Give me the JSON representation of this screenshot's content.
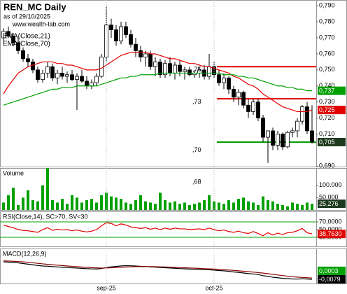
{
  "chart_data": [
    {
      "type": "candlestick",
      "title": "REN_MC Daily",
      "subtitle": "as of 29/10/2025",
      "source": "www.wealth-lab.com",
      "open": [
        0.77,
        0.774,
        0.771,
        0.767,
        0.762,
        0.757,
        0.755,
        0.75,
        0.744,
        0.748,
        0.752,
        0.745,
        0.748,
        0.746,
        0.747,
        0.744,
        0.746,
        0.743,
        0.74,
        0.742,
        0.746,
        0.758,
        0.778,
        0.775,
        0.768,
        0.777,
        0.772,
        0.766,
        0.762,
        0.758,
        0.76,
        0.752,
        0.755,
        0.747,
        0.754,
        0.748,
        0.753,
        0.749,
        0.75,
        0.747,
        0.748,
        0.75,
        0.746,
        0.752,
        0.747,
        0.742,
        0.745,
        0.738,
        0.733,
        0.736,
        0.728,
        0.724,
        0.73,
        0.72,
        0.708,
        0.712,
        0.703,
        0.71,
        0.702,
        0.711,
        0.712,
        0.718,
        0.727,
        0.712
      ],
      "high": [
        0.776,
        0.777,
        0.773,
        0.77,
        0.764,
        0.76,
        0.757,
        0.752,
        0.75,
        0.755,
        0.754,
        0.75,
        0.752,
        0.749,
        0.75,
        0.748,
        0.75,
        0.746,
        0.744,
        0.748,
        0.76,
        0.79,
        0.782,
        0.778,
        0.78,
        0.78,
        0.775,
        0.77,
        0.765,
        0.762,
        0.762,
        0.758,
        0.757,
        0.756,
        0.758,
        0.755,
        0.756,
        0.752,
        0.752,
        0.75,
        0.752,
        0.753,
        0.76,
        0.755,
        0.75,
        0.748,
        0.746,
        0.74,
        0.738,
        0.737,
        0.732,
        0.732,
        0.732,
        0.722,
        0.712,
        0.714,
        0.712,
        0.711,
        0.712,
        0.714,
        0.72,
        0.728,
        0.73,
        0.728
      ],
      "low": [
        0.768,
        0.77,
        0.765,
        0.76,
        0.755,
        0.752,
        0.748,
        0.742,
        0.742,
        0.745,
        0.743,
        0.741,
        0.744,
        0.742,
        0.743,
        0.725,
        0.742,
        0.738,
        0.738,
        0.74,
        0.745,
        0.755,
        0.77,
        0.765,
        0.766,
        0.77,
        0.764,
        0.758,
        0.755,
        0.752,
        0.75,
        0.746,
        0.745,
        0.745,
        0.746,
        0.744,
        0.746,
        0.744,
        0.746,
        0.745,
        0.745,
        0.744,
        0.744,
        0.745,
        0.74,
        0.738,
        0.735,
        0.73,
        0.728,
        0.726,
        0.72,
        0.722,
        0.718,
        0.705,
        0.692,
        0.7,
        0.7,
        0.7,
        0.701,
        0.708,
        0.708,
        0.716,
        0.71,
        0.704
      ],
      "close": [
        0.774,
        0.771,
        0.767,
        0.762,
        0.757,
        0.755,
        0.75,
        0.744,
        0.748,
        0.752,
        0.745,
        0.748,
        0.746,
        0.747,
        0.744,
        0.746,
        0.743,
        0.74,
        0.742,
        0.746,
        0.758,
        0.778,
        0.775,
        0.768,
        0.777,
        0.772,
        0.766,
        0.762,
        0.758,
        0.76,
        0.752,
        0.755,
        0.747,
        0.754,
        0.748,
        0.753,
        0.749,
        0.75,
        0.747,
        0.748,
        0.75,
        0.746,
        0.752,
        0.747,
        0.742,
        0.745,
        0.738,
        0.733,
        0.736,
        0.728,
        0.724,
        0.73,
        0.72,
        0.708,
        0.712,
        0.703,
        0.71,
        0.702,
        0.711,
        0.712,
        0.718,
        0.727,
        0.712,
        0.705
      ],
      "series": [
        {
          "name": "EMA(Close,21)",
          "color": "#e00000",
          "values": [
            0.735,
            0.74,
            0.744,
            0.748,
            0.75,
            0.752,
            0.753,
            0.754,
            0.755,
            0.755,
            0.755,
            0.754,
            0.754,
            0.753,
            0.753,
            0.752,
            0.751,
            0.75,
            0.75,
            0.75,
            0.751,
            0.753,
            0.755,
            0.757,
            0.759,
            0.76,
            0.761,
            0.761,
            0.761,
            0.761,
            0.76,
            0.76,
            0.759,
            0.758,
            0.757,
            0.757,
            0.756,
            0.755,
            0.754,
            0.754,
            0.753,
            0.752,
            0.752,
            0.751,
            0.75,
            0.749,
            0.748,
            0.746,
            0.745,
            0.743,
            0.741,
            0.74,
            0.738,
            0.735,
            0.733,
            0.731,
            0.729,
            0.727,
            0.726,
            0.725,
            0.724,
            0.724,
            0.724,
            0.725
          ]
        },
        {
          "name": "EMA(Close,70)",
          "color": "#00a000",
          "values": [
            0.728,
            0.729,
            0.73,
            0.731,
            0.732,
            0.733,
            0.734,
            0.735,
            0.736,
            0.737,
            0.738,
            0.738,
            0.739,
            0.739,
            0.739,
            0.74,
            0.74,
            0.74,
            0.74,
            0.74,
            0.741,
            0.742,
            0.743,
            0.744,
            0.745,
            0.745,
            0.746,
            0.746,
            0.747,
            0.747,
            0.747,
            0.747,
            0.748,
            0.748,
            0.748,
            0.748,
            0.748,
            0.748,
            0.748,
            0.748,
            0.748,
            0.748,
            0.748,
            0.748,
            0.748,
            0.747,
            0.747,
            0.747,
            0.746,
            0.746,
            0.745,
            0.745,
            0.744,
            0.743,
            0.742,
            0.741,
            0.74,
            0.74,
            0.739,
            0.739,
            0.738,
            0.738,
            0.737,
            0.737
          ]
        }
      ],
      "levels": [
        {
          "value": 0.752,
          "color": "#e00000"
        },
        {
          "value": 0.732,
          "color": "#e00000"
        },
        {
          "value": 0.705,
          "color": "#00a000"
        }
      ],
      "annotations": [
        {
          "value": 0.75,
          "label": ",75"
        },
        {
          "value": 0.73,
          "label": ",73"
        },
        {
          "value": 0.7,
          "label": ",70"
        },
        {
          "value": 0.68,
          "label": ",68"
        }
      ],
      "ylim": [
        0.6897,
        0.7936
      ],
      "yticks": [
        {
          "value": 0.79,
          "label": "0,790"
        },
        {
          "value": 0.78,
          "label": "0,780"
        },
        {
          "value": 0.77,
          "label": "0,770"
        },
        {
          "value": 0.76,
          "label": "0,760"
        },
        {
          "value": 0.75,
          "label": "0,750"
        },
        {
          "value": 0.74,
          "label": "0,740"
        },
        {
          "value": 0.73,
          "label": "0,730"
        },
        {
          "value": 0.72,
          "label": "0,720"
        },
        {
          "value": 0.71,
          "label": "0,710"
        },
        {
          "value": 0.69,
          "label": "0,690"
        }
      ],
      "last_labels": [
        {
          "value": 0.737,
          "label": "0,737",
          "color": "#00a000"
        },
        {
          "value": 0.725,
          "label": "0,725",
          "color": "#e00000"
        },
        {
          "value": 0.705,
          "label": "0,705",
          "color": "#1e3a1e"
        }
      ]
    },
    {
      "type": "bar",
      "title": "Volume",
      "color": "#00a000",
      "values": [
        30000,
        60000,
        90000,
        20000,
        50000,
        80000,
        40000,
        35000,
        100000,
        170000,
        40000,
        30000,
        45000,
        25000,
        60000,
        50000,
        30000,
        40000,
        45000,
        30000,
        60000,
        70000,
        55000,
        50000,
        45000,
        30000,
        25000,
        40000,
        60000,
        35000,
        30000,
        25000,
        70000,
        40000,
        30000,
        35000,
        25000,
        30000,
        20000,
        25000,
        30000,
        40000,
        60000,
        35000,
        30000,
        25000,
        40000,
        30000,
        45000,
        50000,
        35000,
        30000,
        20000,
        55000,
        40000,
        35000,
        25000,
        20000,
        15000,
        30000,
        25000,
        20000,
        30000,
        25276
      ],
      "ylim": [
        0,
        170000
      ],
      "yticks": [
        {
          "value": 100000,
          "label": "100.000"
        },
        {
          "value": 50000,
          "label": "50.000"
        }
      ],
      "last_labels": [
        {
          "value": 25276,
          "label": "25.276",
          "color": "#1e3a1e"
        }
      ]
    },
    {
      "type": "line",
      "title": "RSI(Close,14), SC>70, SV<30",
      "color": "#e00000",
      "values": [
        62,
        58,
        55,
        50,
        48,
        47,
        45,
        43,
        50,
        55,
        48,
        51,
        49,
        50,
        47,
        49,
        46,
        44,
        46,
        50,
        60,
        68,
        66,
        60,
        65,
        62,
        57,
        55,
        53,
        55,
        51,
        54,
        50,
        54,
        51,
        54,
        52,
        52,
        50,
        51,
        52,
        50,
        54,
        50,
        47,
        49,
        45,
        43,
        46,
        42,
        40,
        45,
        40,
        34,
        42,
        36,
        41,
        37,
        42,
        43,
        47,
        53,
        42,
        38.763
      ],
      "levels": [
        {
          "value": 70,
          "color": "#00a000"
        },
        {
          "value": 30,
          "color": "#00a000"
        }
      ],
      "ylim": [
        6.4,
        97.3
      ],
      "yticks": [
        {
          "value": 70,
          "label": "70,0000"
        },
        {
          "value": 50,
          "label": "50,0000"
        },
        {
          "value": 30,
          "label": "30,0000"
        }
      ],
      "last_labels": [
        {
          "value": 38.763,
          "label": "38,7630",
          "color": "#e00000"
        }
      ]
    },
    {
      "type": "line",
      "title": "MACD(12,26,9)",
      "series": [
        {
          "color": "#000000",
          "values": [
            0.009,
            0.0088,
            0.0085,
            0.008,
            0.0074,
            0.0068,
            0.0062,
            0.0055,
            0.005,
            0.0048,
            0.0044,
            0.0041,
            0.0038,
            0.0035,
            0.0032,
            0.003,
            0.0027,
            0.0024,
            0.0022,
            0.0021,
            0.0025,
            0.0035,
            0.0042,
            0.0046,
            0.0051,
            0.0053,
            0.0052,
            0.005,
            0.0047,
            0.0045,
            0.0041,
            0.0039,
            0.0035,
            0.0033,
            0.003,
            0.0028,
            0.0025,
            0.0023,
            0.002,
            0.0018,
            0.0016,
            0.0013,
            0.0013,
            0.001,
            0.0006,
            0.0003,
            -0.0002,
            -0.0008,
            -0.0012,
            -0.0018,
            -0.0024,
            -0.0027,
            -0.0033,
            -0.0044,
            -0.005,
            -0.0059,
            -0.0064,
            -0.007,
            -0.0073,
            -0.0076,
            -0.0077,
            -0.0074,
            -0.0077,
            -0.0079
          ]
        },
        {
          "color": "#8b0000",
          "values": [
            0.01,
            0.0098,
            0.0096,
            0.0093,
            0.009,
            0.0086,
            0.0081,
            0.0076,
            0.0071,
            0.0066,
            0.0062,
            0.0058,
            0.0054,
            0.005,
            0.0047,
            0.0043,
            0.004,
            0.0037,
            0.0034,
            0.0032,
            0.003,
            0.0031,
            0.0033,
            0.0035,
            0.0038,
            0.004,
            0.0042,
            0.0044,
            0.0044,
            0.0044,
            0.0044,
            0.0043,
            0.0042,
            0.0041,
            0.0039,
            0.0037,
            0.0035,
            0.0033,
            0.0031,
            0.0029,
            0.0027,
            0.0024,
            0.0022,
            0.002,
            0.0017,
            0.0014,
            0.0011,
            0.0007,
            0.0003,
            -0.0001,
            -0.0005,
            -0.0009,
            -0.0014,
            -0.0019,
            -0.0025,
            -0.0031,
            -0.0037,
            -0.0043,
            -0.0049,
            -0.0054,
            -0.0058,
            -0.0061,
            -0.0064,
            -0.0067
          ]
        }
      ],
      "ylim": [
        -0.012,
        0.022
      ],
      "last_labels": [
        {
          "value": 0.0003,
          "label": "0,0003",
          "color": "#00a000"
        },
        {
          "value": -0.0079,
          "label": "-0,0079",
          "color": "#000000"
        }
      ],
      "categories": [
        null,
        null,
        null,
        null,
        null,
        null,
        null,
        null,
        null,
        null,
        null,
        null,
        null,
        null,
        null,
        null,
        null,
        null,
        null,
        null,
        null,
        "sep-25",
        null,
        null,
        null,
        null,
        null,
        null,
        null,
        null,
        null,
        null,
        null,
        null,
        null,
        null,
        null,
        null,
        null,
        null,
        null,
        null,
        null,
        "oct-25",
        null,
        null,
        null,
        null,
        null,
        null,
        null,
        null,
        null,
        null,
        null,
        null,
        null,
        null,
        null,
        null,
        null,
        null,
        null,
        null
      ]
    }
  ]
}
